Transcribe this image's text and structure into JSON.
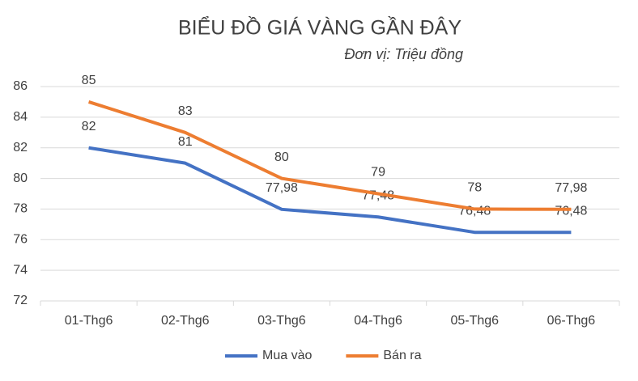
{
  "chart_data": {
    "type": "line",
    "title": "BIỂU ĐỒ GIÁ VÀNG GẦN ĐÂY",
    "subtitle": "Đơn vị: Triệu đồng",
    "categories": [
      "01-Thg6",
      "02-Thg6",
      "03-Thg6",
      "04-Thg6",
      "05-Thg6",
      "06-Thg6"
    ],
    "series": [
      {
        "name": "Mua vào",
        "color": "#4472c4",
        "values": [
          82,
          81,
          77.98,
          77.48,
          76.48,
          76.48
        ],
        "value_labels": [
          "82",
          "81",
          "77,98",
          "77,48",
          "76,48",
          "76,48"
        ]
      },
      {
        "name": "Bán ra",
        "color": "#ed7d31",
        "values": [
          85,
          83,
          80,
          79,
          78,
          77.98
        ],
        "value_labels": [
          "85",
          "83",
          "80",
          "79",
          "78",
          "77,98"
        ]
      }
    ],
    "ylim": [
      72,
      86
    ],
    "yticks": [
      72,
      74,
      76,
      78,
      80,
      82,
      84,
      86
    ],
    "grid": true,
    "legend": "bottom"
  }
}
